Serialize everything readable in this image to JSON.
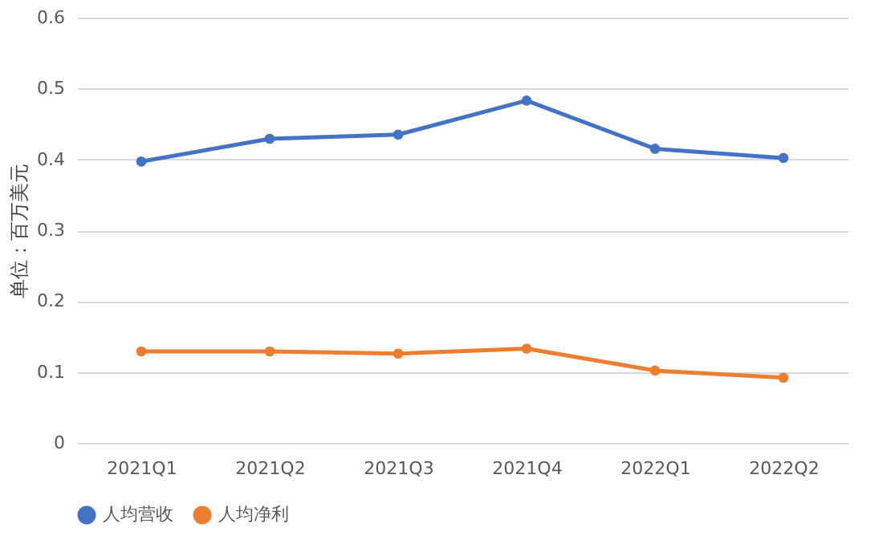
{
  "chart_data": {
    "type": "line",
    "ylabel": "单位：百万美元",
    "categories": [
      "2021Q1",
      "2021Q2",
      "2021Q3",
      "2021Q4",
      "2022Q1",
      "2022Q2"
    ],
    "series": [
      {
        "name": "人均营收",
        "color": "#4472c4",
        "values": [
          0.397,
          0.429,
          0.435,
          0.483,
          0.415,
          0.402
        ]
      },
      {
        "name": "人均净利",
        "color": "#ed7d31",
        "values": [
          0.129,
          0.129,
          0.126,
          0.133,
          0.102,
          0.092
        ]
      }
    ],
    "ylim": [
      0,
      0.6
    ],
    "yticks": [
      0,
      0.1,
      0.2,
      0.3,
      0.4,
      0.5,
      0.6
    ],
    "grid": "y",
    "legend": "bottom",
    "marker": "circle",
    "line_style": "solid"
  }
}
